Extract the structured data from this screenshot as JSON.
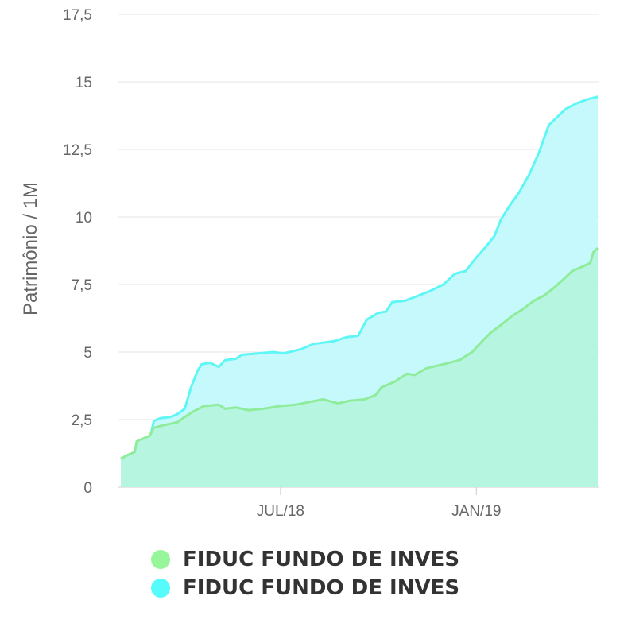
{
  "chart_data": {
    "type": "area",
    "title": "",
    "ylabel": "Patrimônio / 1M",
    "xlabel": "",
    "ylim": [
      0,
      17.5
    ],
    "y_ticks": [
      {
        "value": 0,
        "label": "0"
      },
      {
        "value": 2.5,
        "label": "2,5"
      },
      {
        "value": 5,
        "label": "5"
      },
      {
        "value": 7.5,
        "label": "7,5"
      },
      {
        "value": 10,
        "label": "10"
      },
      {
        "value": 12.5,
        "label": "12,5"
      },
      {
        "value": 15,
        "label": "15"
      },
      {
        "value": 17.5,
        "label": "17,5"
      }
    ],
    "xlim": [
      "2018-02-01",
      "2019-04-25"
    ],
    "x_ticks": [
      {
        "date": "2018-07-01",
        "label": "JUL/18"
      },
      {
        "date": "2019-01-01",
        "label": "JAN/19"
      }
    ],
    "grid": "horizontal",
    "legend_position": "bottom",
    "series": [
      {
        "name": "FIDUC FUNDO DE INVES",
        "color": "#5ff6f6",
        "fill": "#c6f9fb",
        "points": [
          [
            "2018-02-01",
            1.05
          ],
          [
            "2018-02-08",
            1.2
          ],
          [
            "2018-02-16",
            1.25
          ],
          [
            "2018-02-20",
            1.65
          ],
          [
            "2018-02-28",
            1.75
          ],
          [
            "2018-03-04",
            2.45
          ],
          [
            "2018-03-10",
            2.55
          ],
          [
            "2018-03-20",
            2.6
          ],
          [
            "2018-03-26",
            2.7
          ],
          [
            "2018-04-02",
            2.9
          ],
          [
            "2018-04-08",
            3.7
          ],
          [
            "2018-04-14",
            4.3
          ],
          [
            "2018-04-18",
            4.55
          ],
          [
            "2018-04-26",
            4.6
          ],
          [
            "2018-05-04",
            4.45
          ],
          [
            "2018-05-10",
            4.7
          ],
          [
            "2018-05-20",
            4.75
          ],
          [
            "2018-05-26",
            4.9
          ],
          [
            "2018-06-10",
            4.95
          ],
          [
            "2018-06-24",
            5.0
          ],
          [
            "2018-07-04",
            4.95
          ],
          [
            "2018-07-20",
            5.1
          ],
          [
            "2018-08-01",
            5.3
          ],
          [
            "2018-08-20",
            5.4
          ],
          [
            "2018-09-01",
            5.55
          ],
          [
            "2018-09-12",
            5.6
          ],
          [
            "2018-09-16",
            5.9
          ],
          [
            "2018-09-20",
            6.2
          ],
          [
            "2018-10-01",
            6.45
          ],
          [
            "2018-10-08",
            6.5
          ],
          [
            "2018-10-14",
            6.85
          ],
          [
            "2018-10-26",
            6.9
          ],
          [
            "2018-11-05",
            7.05
          ],
          [
            "2018-11-18",
            7.25
          ],
          [
            "2018-12-01",
            7.5
          ],
          [
            "2018-12-12",
            7.9
          ],
          [
            "2018-12-22",
            8.0
          ],
          [
            "2019-01-01",
            8.5
          ],
          [
            "2019-01-10",
            8.9
          ],
          [
            "2019-01-18",
            9.3
          ],
          [
            "2019-01-24",
            9.9
          ],
          [
            "2019-02-01",
            10.4
          ],
          [
            "2019-02-10",
            10.9
          ],
          [
            "2019-02-20",
            11.6
          ],
          [
            "2019-03-01",
            12.4
          ],
          [
            "2019-03-10",
            13.4
          ],
          [
            "2019-03-18",
            13.7
          ],
          [
            "2019-03-26",
            14.0
          ],
          [
            "2019-04-05",
            14.2
          ],
          [
            "2019-04-15",
            14.35
          ],
          [
            "2019-04-25",
            14.45
          ]
        ]
      },
      {
        "name": "FIDUC FUNDO DE INVES",
        "color": "#8eec9a",
        "fill": "#b6f5df",
        "points": [
          [
            "2018-02-01",
            1.05
          ],
          [
            "2018-02-08",
            1.2
          ],
          [
            "2018-02-14",
            1.3
          ],
          [
            "2018-02-16",
            1.7
          ],
          [
            "2018-02-28",
            1.9
          ],
          [
            "2018-03-04",
            2.2
          ],
          [
            "2018-03-14",
            2.3
          ],
          [
            "2018-03-26",
            2.4
          ],
          [
            "2018-04-02",
            2.6
          ],
          [
            "2018-04-10",
            2.8
          ],
          [
            "2018-04-20",
            3.0
          ],
          [
            "2018-05-04",
            3.05
          ],
          [
            "2018-05-10",
            2.9
          ],
          [
            "2018-05-20",
            2.95
          ],
          [
            "2018-06-01",
            2.85
          ],
          [
            "2018-06-15",
            2.9
          ],
          [
            "2018-06-30",
            3.0
          ],
          [
            "2018-07-15",
            3.05
          ],
          [
            "2018-07-28",
            3.15
          ],
          [
            "2018-08-10",
            3.25
          ],
          [
            "2018-08-24",
            3.1
          ],
          [
            "2018-09-04",
            3.2
          ],
          [
            "2018-09-18",
            3.25
          ],
          [
            "2018-09-28",
            3.4
          ],
          [
            "2018-10-04",
            3.7
          ],
          [
            "2018-10-16",
            3.9
          ],
          [
            "2018-10-28",
            4.2
          ],
          [
            "2018-11-04",
            4.15
          ],
          [
            "2018-11-15",
            4.4
          ],
          [
            "2018-12-01",
            4.55
          ],
          [
            "2018-12-16",
            4.7
          ],
          [
            "2018-12-28",
            5.0
          ],
          [
            "2019-01-04",
            5.3
          ],
          [
            "2019-01-14",
            5.7
          ],
          [
            "2019-01-24",
            6.0
          ],
          [
            "2019-02-04",
            6.35
          ],
          [
            "2019-02-14",
            6.6
          ],
          [
            "2019-02-24",
            6.9
          ],
          [
            "2019-03-06",
            7.1
          ],
          [
            "2019-03-14",
            7.35
          ],
          [
            "2019-03-24",
            7.7
          ],
          [
            "2019-04-01",
            8.0
          ],
          [
            "2019-04-10",
            8.15
          ],
          [
            "2019-04-18",
            8.3
          ],
          [
            "2019-04-21",
            8.7
          ],
          [
            "2019-04-25",
            8.85
          ]
        ]
      }
    ]
  },
  "legend": [
    {
      "label": "FIDUC FUNDO DE INVES",
      "color": "#97f59a"
    },
    {
      "label": "FIDUC FUNDO DE INVES",
      "color": "#56fbfc"
    }
  ]
}
